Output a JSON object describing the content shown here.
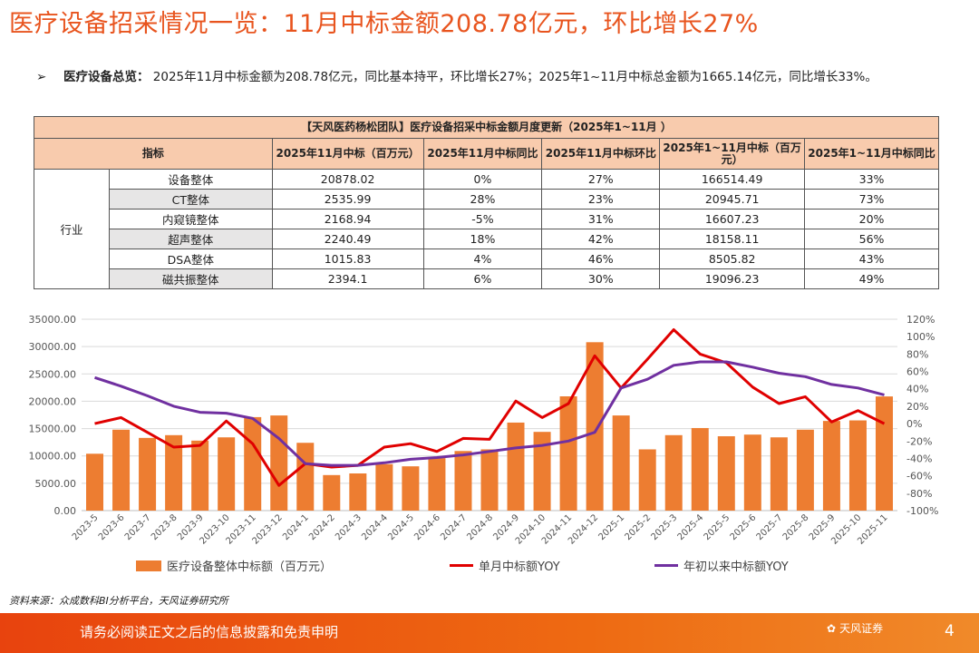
{
  "title": "医疗设备招采情况一览：11月中标金额208.78亿元，环比增长27%",
  "bullet": {
    "label": "医疗设备总览：",
    "text": " 2025年11月中标金额为208.78亿元，同比基本持平，环比增长27%；2025年1~11月中标总金额为1665.14亿元，同比增长33%。"
  },
  "table": {
    "title": "【天风医药杨松团队】医疗设备招采中标金额月度更新（2025年1~11月 ）",
    "headers": [
      "指标",
      "2025年11月中标（百万元）",
      "2025年11月中标同比",
      "2025年11月中标环比",
      "2025年1~11月中标（百万元）",
      "2025年1~11月中标同比"
    ],
    "category": "行业",
    "rows": [
      [
        "设备整体",
        "20878.02",
        "0%",
        "27%",
        "166514.49",
        "33%"
      ],
      [
        "CT整体",
        "2535.99",
        "28%",
        "23%",
        "20945.71",
        "73%"
      ],
      [
        "内窥镜整体",
        "2168.94",
        "-5%",
        "31%",
        "16607.23",
        "20%"
      ],
      [
        "超声整体",
        "2240.49",
        "18%",
        "42%",
        "18158.11",
        "56%"
      ],
      [
        "DSA整体",
        "1015.83",
        "4%",
        "46%",
        "8505.82",
        "43%"
      ],
      [
        "磁共振整体",
        "2394.1",
        "6%",
        "30%",
        "19096.23",
        "49%"
      ]
    ]
  },
  "chart_data": {
    "type": "bar+line",
    "categories": [
      "2023-5",
      "2023-6",
      "2023-7",
      "2023-8",
      "2023-9",
      "2023-10",
      "2023-11",
      "2023-12",
      "2024-1",
      "2024-2",
      "2024-3",
      "2024-4",
      "2024-5",
      "2024-6",
      "2024-7",
      "2024-8",
      "2024-9",
      "2024-10",
      "2024-11",
      "2024-12",
      "2025-1",
      "2025-2",
      "2025-3",
      "2025-4",
      "2025-5",
      "2025-6",
      "2025-7",
      "2025-8",
      "2025-9",
      "2025-10",
      "2025-11"
    ],
    "series": [
      {
        "name": "医疗设备整体中标额（百万元）",
        "type": "bar",
        "axis": "left",
        "color": "#ED7D31",
        "values": [
          10400,
          14800,
          13300,
          13800,
          12800,
          13400,
          17100,
          17400,
          12400,
          6500,
          6800,
          8500,
          8100,
          9600,
          10900,
          11200,
          16100,
          14400,
          20900,
          30800,
          17400,
          11200,
          13800,
          15100,
          13600,
          13900,
          13400,
          14800,
          16400,
          16500,
          20878
        ]
      },
      {
        "name": "单月中标额YOY",
        "type": "line",
        "axis": "right",
        "color": "#E00000",
        "values": [
          0,
          7,
          -10,
          -27,
          -25,
          3,
          -23,
          -71,
          -46,
          -50,
          -48,
          -27,
          -23,
          -32,
          -17,
          -18,
          26,
          7,
          23,
          78,
          41,
          74,
          108,
          80,
          70,
          42,
          23,
          31,
          2,
          15,
          0
        ]
      },
      {
        "name": "年初以来中标额YOY",
        "type": "line",
        "axis": "right",
        "color": "#7030A0",
        "values": [
          53,
          43,
          32,
          20,
          13,
          12,
          6,
          -17,
          -46,
          -48,
          -48,
          -45,
          -41,
          -39,
          -36,
          -32,
          -28,
          -25,
          -20,
          -10,
          41,
          51,
          67,
          71,
          71,
          65,
          58,
          54,
          45,
          41,
          33
        ]
      }
    ],
    "left_ticks": [
      "0.00",
      "5000.00",
      "10000.00",
      "15000.00",
      "20000.00",
      "25000.00",
      "30000.00",
      "35000.00"
    ],
    "right_ticks": [
      "-100%",
      "-80%",
      "-60%",
      "-40%",
      "-20%",
      "0%",
      "20%",
      "40%",
      "60%",
      "80%",
      "100%",
      "120%"
    ],
    "ylim_left": [
      0,
      35000
    ],
    "ylim_right": [
      -100,
      120
    ]
  },
  "source": "资料来源：众成数科BI分析平台，天风证券研究所",
  "footer": {
    "disclaimer": "请务必阅读正文之后的信息披露和免责申明",
    "logo": "天风证券",
    "page": "4"
  }
}
